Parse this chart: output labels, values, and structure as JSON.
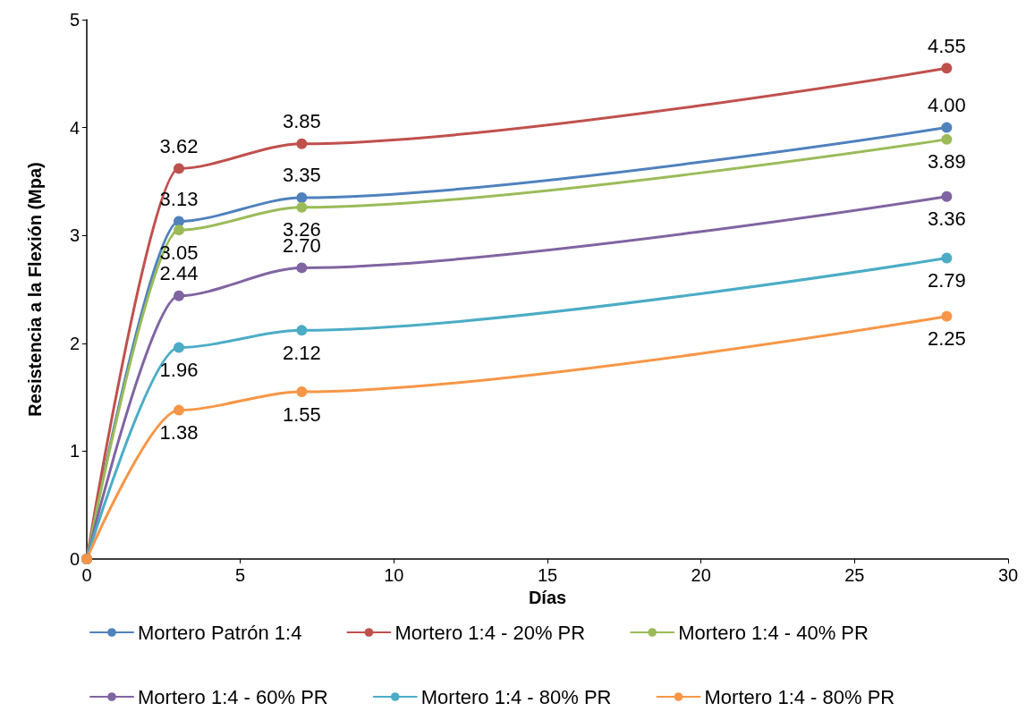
{
  "chart_data": {
    "type": "line",
    "xlabel": "Días",
    "ylabel": "Resistencia a la Flexión (Mpa)",
    "x": [
      0,
      3,
      7,
      28
    ],
    "series": [
      {
        "name": "Mortero Patrón 1:4",
        "color": "#4f81bd",
        "values": [
          0,
          3.13,
          3.35,
          4.0
        ],
        "value_labels": [
          null,
          "3.13",
          "3.35",
          "4.00"
        ]
      },
      {
        "name": "Mortero 1:4 - 20% PR",
        "color": "#c0504d",
        "values": [
          0,
          3.62,
          3.85,
          4.55
        ],
        "value_labels": [
          null,
          "3.62",
          "3.85",
          "4.55"
        ]
      },
      {
        "name": "Mortero 1:4 - 40% PR",
        "color": "#9bbb59",
        "values": [
          0,
          3.05,
          3.26,
          3.89
        ],
        "value_labels": [
          null,
          "3.05",
          "3.26",
          "3.89"
        ]
      },
      {
        "name": "Mortero 1:4 - 60% PR",
        "color": "#8064a2",
        "values": [
          0,
          2.44,
          2.7,
          3.36
        ],
        "value_labels": [
          null,
          "2.44",
          "2.70",
          "3.36"
        ]
      },
      {
        "name": "Mortero 1:4 - 80% PR",
        "color": "#4bacc6",
        "values": [
          0,
          1.96,
          2.12,
          2.79
        ],
        "value_labels": [
          null,
          "1.96",
          "2.12",
          "2.79"
        ]
      },
      {
        "name": "Mortero 1:4 - 80% PR",
        "color": "#f79646",
        "values": [
          0,
          1.38,
          1.55,
          2.25
        ],
        "value_labels": [
          null,
          "1.38",
          "1.55",
          "2.25"
        ]
      }
    ],
    "xlim": [
      0,
      30
    ],
    "xticks": [
      0,
      5,
      10,
      15,
      20,
      25,
      30
    ],
    "ylim": [
      0,
      5
    ],
    "yticks": [
      0,
      1,
      2,
      3,
      4,
      5
    ],
    "grid": false,
    "legend": "bottom",
    "marker": "circle",
    "line_style": "solid"
  }
}
